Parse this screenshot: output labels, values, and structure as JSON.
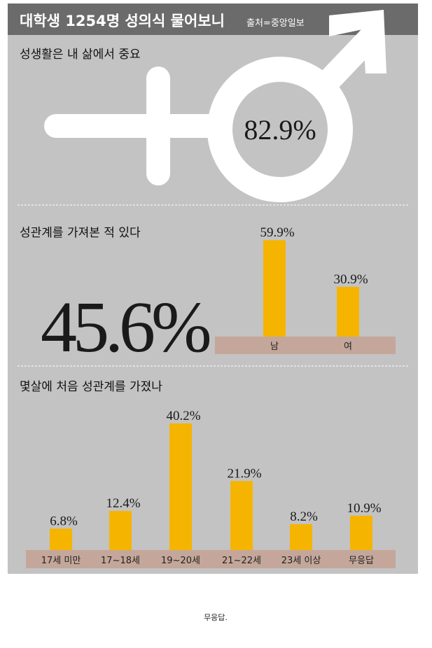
{
  "title": "대학생 1254명 성의식 물어보니",
  "source": "출처=중앙일보",
  "caption": "무응답.",
  "chart_data": [
    {
      "type": "stat",
      "title": "성생활은 내 삶에서 중요",
      "values": [
        82.9
      ],
      "value_labels": [
        "82.9%"
      ]
    },
    {
      "type": "bar",
      "title": "성관계를 가져본 적 있다",
      "total": 45.6,
      "total_label": "45.6%",
      "categories": [
        "남",
        "여"
      ],
      "values": [
        59.9,
        30.9
      ],
      "value_labels": [
        "59.9%",
        "30.9%"
      ],
      "color": "#f5b400"
    },
    {
      "type": "bar",
      "title": "몇살에 처음 성관계를 가졌나",
      "categories": [
        "17세 미만",
        "17~18세",
        "19~20세",
        "21~22세",
        "23세 이상",
        "무응답"
      ],
      "values": [
        6.8,
        12.4,
        40.2,
        21.9,
        8.2,
        10.9
      ],
      "value_labels": [
        "6.8%",
        "12.4%",
        "40.2%",
        "21.9%",
        "8.2%",
        "10.9%"
      ],
      "color": "#f5b400"
    }
  ]
}
